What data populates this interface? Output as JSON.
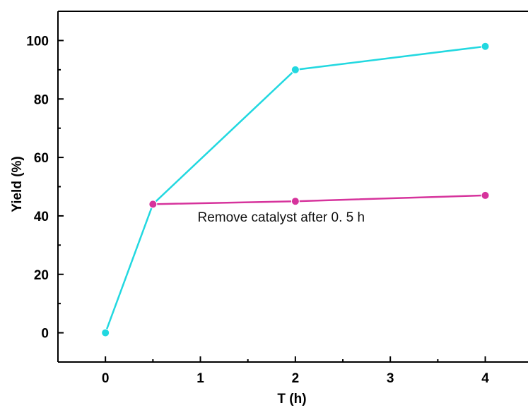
{
  "chart_data": {
    "type": "line",
    "title": "",
    "xlabel": "T (h)",
    "ylabel": "Yield (%)",
    "xlim": [
      -0.5,
      4.45
    ],
    "ylim": [
      -10,
      110
    ],
    "x_ticks": [
      0,
      1,
      2,
      3,
      4
    ],
    "x_tick_labels": [
      "0",
      "1",
      "2",
      "3",
      "4"
    ],
    "y_ticks": [
      0,
      20,
      40,
      60,
      80,
      100
    ],
    "y_tick_labels": [
      "0",
      "20",
      "40",
      "60",
      "80",
      "100"
    ],
    "grid": false,
    "legend": "none",
    "series": [
      {
        "color": "#22d8e0",
        "points": [
          {
            "x": 0,
            "y": 0
          },
          {
            "x": 0.5,
            "y": 44
          },
          {
            "x": 2,
            "y": 90
          },
          {
            "x": 4,
            "y": 98
          }
        ]
      },
      {
        "color": "#d6339c",
        "points": [
          {
            "x": 0.5,
            "y": 44
          },
          {
            "x": 2,
            "y": 45
          },
          {
            "x": 4,
            "y": 47
          }
        ]
      }
    ],
    "annotations": [
      {
        "text": "Remove catalyst after 0. 5 h",
        "x": 0.97,
        "y": 38
      }
    ]
  }
}
